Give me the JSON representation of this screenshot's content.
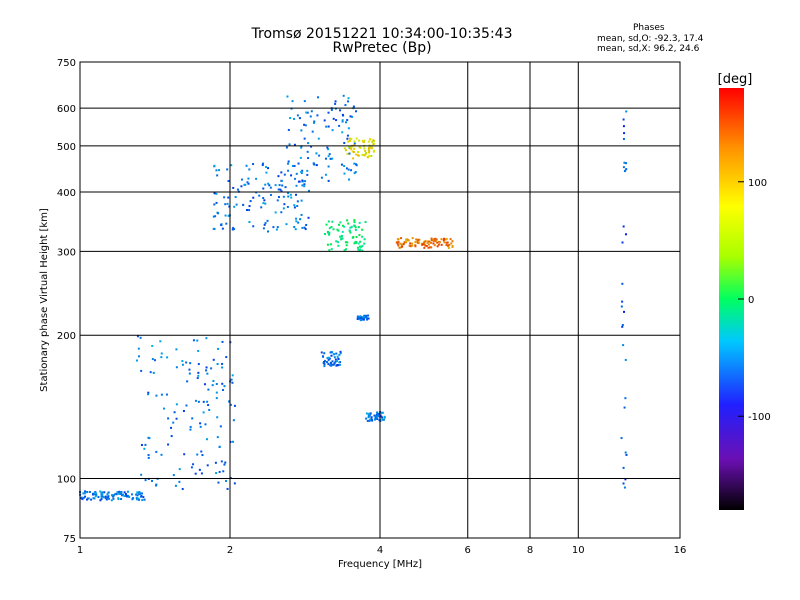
{
  "title": "Tromsø 20151221 10:34:00-10:35:43",
  "subtitle": "RwPretec (Bp)",
  "phases": {
    "heading": "Phases",
    "line_o": "mean, sd,O: -92.3, 17.4",
    "line_x": "mean, sd,X:  96.2, 24.6"
  },
  "colorbar": {
    "label": "[deg]",
    "ticks": [
      {
        "value": 100,
        "label": "100"
      },
      {
        "value": 0,
        "label": "0"
      },
      {
        "value": -100,
        "label": "-100"
      }
    ],
    "range": [
      -180,
      180
    ]
  },
  "chart_data": {
    "type": "scatter",
    "xlabel": "Frequency [MHz]",
    "ylabel": "Stationary phase Virtual Height [km]",
    "xscale": "log",
    "yscale": "log",
    "xlim": [
      1,
      16
    ],
    "ylim": [
      75,
      750
    ],
    "xticks": [
      1,
      2,
      4,
      6,
      8,
      10,
      16
    ],
    "yticks": [
      75,
      100,
      200,
      300,
      400,
      500,
      600,
      750
    ],
    "grid": true,
    "color_encodes": "phase [deg]",
    "clusters": [
      {
        "x_range": [
          1.0,
          1.35
        ],
        "y_range": [
          90,
          94
        ],
        "phase": -100
      },
      {
        "x_range": [
          1.3,
          2.05
        ],
        "y_range": [
          95,
          200
        ],
        "phase": -100
      },
      {
        "x_range": [
          1.85,
          2.9
        ],
        "y_range": [
          330,
          460
        ],
        "phase": -100
      },
      {
        "x_range": [
          2.6,
          3.6
        ],
        "y_range": [
          420,
          640
        ],
        "phase": -100
      },
      {
        "x_range": [
          3.4,
          3.9
        ],
        "y_range": [
          470,
          520
        ],
        "phase": 100
      },
      {
        "x_range": [
          3.1,
          3.75
        ],
        "y_range": [
          300,
          350
        ],
        "phase": -20
      },
      {
        "x_range": [
          3.05,
          3.35
        ],
        "y_range": [
          172,
          185
        ],
        "phase": -100
      },
      {
        "x_range": [
          3.75,
          4.1
        ],
        "y_range": [
          132,
          138
        ],
        "phase": -100
      },
      {
        "x_range": [
          4.3,
          5.6
        ],
        "y_range": [
          305,
          320
        ],
        "phase": 140
      },
      {
        "x_range": [
          3.6,
          3.8
        ],
        "y_range": [
          215,
          220
        ],
        "phase": -100
      },
      {
        "x_range": [
          12.2,
          12.5
        ],
        "y_range": [
          95,
          640
        ],
        "phase": -110
      }
    ]
  }
}
